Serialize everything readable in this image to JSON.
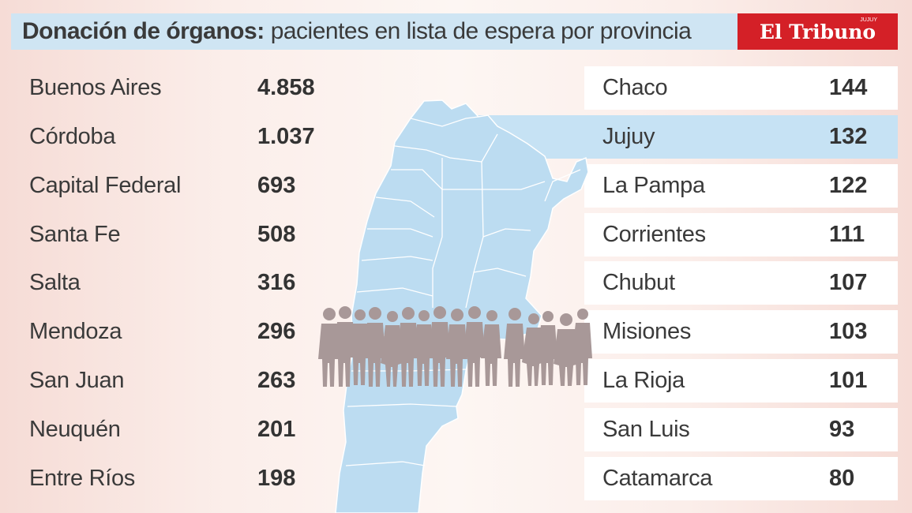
{
  "header": {
    "title_bold": "Donación de órganos:",
    "title_rest": "pacientes en lista de espera por provincia"
  },
  "logo": {
    "name": "El Tribuno",
    "edition": "JUJUY"
  },
  "colors": {
    "title_bar": "#cfe5f3",
    "logo_red": "#d42027",
    "row_white": "#ffffff",
    "row_highlight": "#c6e2f4",
    "map_fill": "#bcdcf1",
    "silhouettes": "#a89898"
  },
  "chart_data": {
    "type": "table",
    "columns": [
      {
        "rows": [
          {
            "provincia": "Buenos Aires",
            "pacientes": "4.858"
          },
          {
            "provincia": "Córdoba",
            "pacientes": "1.037"
          },
          {
            "provincia": "Capital Federal",
            "pacientes": "693"
          },
          {
            "provincia": "Santa Fe",
            "pacientes": "508"
          },
          {
            "provincia": "Salta",
            "pacientes": "316"
          },
          {
            "provincia": "Mendoza",
            "pacientes": "296"
          },
          {
            "provincia": "San Juan",
            "pacientes": "263"
          },
          {
            "provincia": "Neuquén",
            "pacientes": "201"
          },
          {
            "provincia": "Entre Ríos",
            "pacientes": "198"
          }
        ]
      },
      {
        "rows": [
          {
            "provincia": "Chaco",
            "pacientes": "144"
          },
          {
            "provincia": "Jujuy",
            "pacientes": "132",
            "highlight": true
          },
          {
            "provincia": "La Pampa",
            "pacientes": "122"
          },
          {
            "provincia": "Corrientes",
            "pacientes": "111"
          },
          {
            "provincia": "Chubut",
            "pacientes": "107"
          },
          {
            "provincia": "Misiones",
            "pacientes": "103"
          },
          {
            "provincia": "La Rioja",
            "pacientes": "101"
          },
          {
            "provincia": "San Luis",
            "pacientes": "93"
          },
          {
            "provincia": "Catamarca",
            "pacientes": "80"
          }
        ]
      }
    ]
  }
}
